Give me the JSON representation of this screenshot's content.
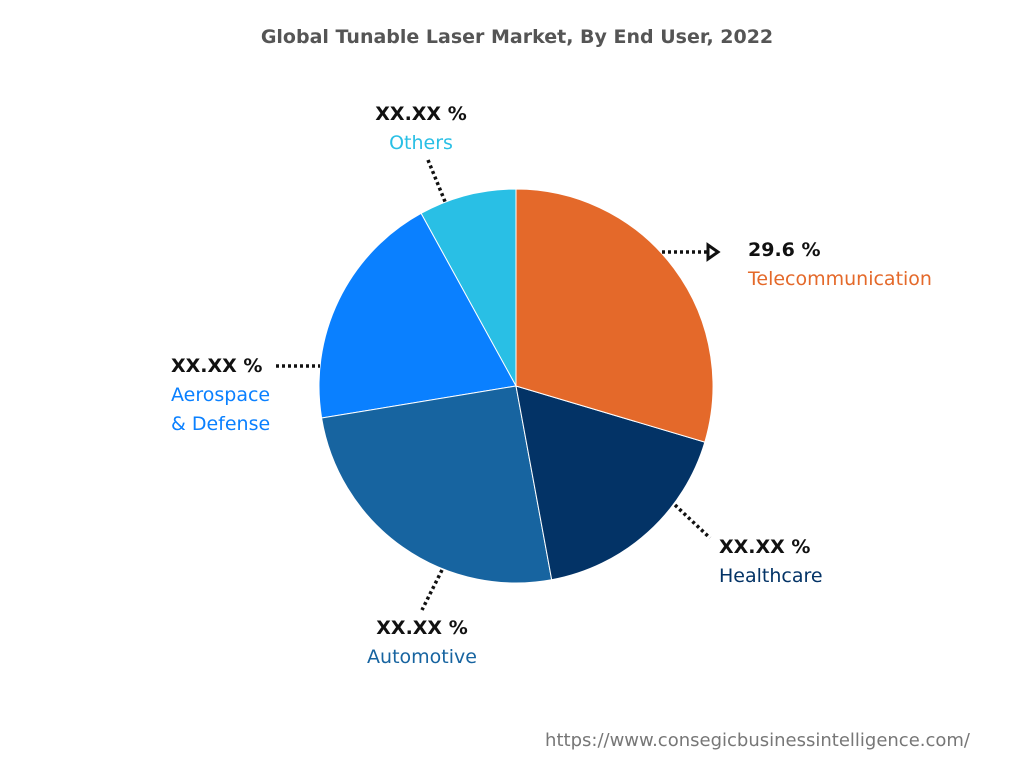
{
  "chart_data": {
    "type": "pie",
    "title": "Global Tunable Laser Market, By End User, 2022",
    "start_angle": "top",
    "direction": "clockwise",
    "slices": [
      {
        "label": "Telecommunication",
        "value": 29.6,
        "value_label": "29.6 %",
        "color": "#E4692A"
      },
      {
        "label": "Healthcare",
        "value": 17.5,
        "value_label": "XX.XX %",
        "color": "#033366"
      },
      {
        "label": "Automotive",
        "value": 25.3,
        "value_label": "XX.XX %",
        "color": "#1764A0"
      },
      {
        "label": "Aerospace & Defense",
        "label_lines": [
          "Aerospace",
          "& Defense"
        ],
        "value": 19.6,
        "value_label": "XX.XX %",
        "color": "#0A80FF"
      },
      {
        "label": "Others",
        "value": 8.0,
        "value_label": "XX.XX %",
        "color": "#29BFE5"
      }
    ]
  },
  "footer": {
    "url": "https://www.consegicbusinessintelligence.com/"
  }
}
